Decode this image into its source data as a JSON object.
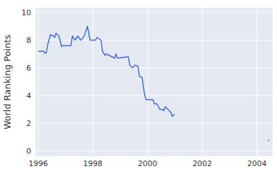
{
  "chart_data": {
    "type": "line",
    "y_label": "World Ranking Points",
    "color": "#4169e1",
    "grid": true,
    "x": [
      1996.0,
      1996.2,
      1996.25,
      1996.3,
      1996.35,
      1996.45,
      1996.55,
      1996.6,
      1996.65,
      1996.75,
      1996.8,
      1996.85,
      1996.9,
      1997.2,
      1997.25,
      1997.35,
      1997.45,
      1997.55,
      1997.65,
      1997.7,
      1997.8,
      1997.85,
      1997.9,
      1998.1,
      1998.15,
      1998.3,
      1998.35,
      1998.45,
      1998.5,
      1998.6,
      1998.7,
      1998.8,
      1998.85,
      1998.9,
      1999.3,
      1999.35,
      1999.45,
      1999.55,
      1999.65,
      1999.7,
      1999.8,
      1999.85,
      1999.9,
      1999.95,
      2000.2,
      2000.25,
      2000.35,
      2000.45,
      2000.55,
      2000.6,
      2000.65,
      2000.75,
      2000.85,
      2000.9,
      2000.95,
      2001.0,
      2002.5,
      2004.4,
      2004.45
    ],
    "values": [
      7.2,
      7.2,
      7.05,
      7.1,
      7.7,
      8.4,
      8.3,
      8.2,
      8.5,
      8.3,
      8.0,
      7.55,
      7.6,
      7.6,
      8.3,
      8.0,
      8.3,
      8.0,
      8.2,
      8.4,
      9.0,
      8.5,
      8.0,
      8.0,
      8.2,
      8.0,
      7.2,
      6.9,
      7.0,
      6.9,
      6.8,
      6.7,
      7.0,
      6.7,
      6.8,
      6.2,
      6.0,
      6.2,
      6.1,
      5.4,
      5.3,
      4.6,
      4.0,
      3.7,
      3.7,
      3.4,
      3.4,
      3.0,
      3.0,
      2.9,
      3.2,
      3.0,
      2.8,
      2.5,
      2.6,
      2.6,
      null,
      0.75,
      0.75
    ],
    "xlim": [
      1995.92,
      2004.56
    ],
    "ylim": [
      -0.35,
      10.3
    ],
    "xticks": [
      1996,
      1998,
      2000,
      2002,
      2004
    ],
    "yticks": [
      0,
      2,
      4,
      6,
      8,
      10
    ]
  }
}
